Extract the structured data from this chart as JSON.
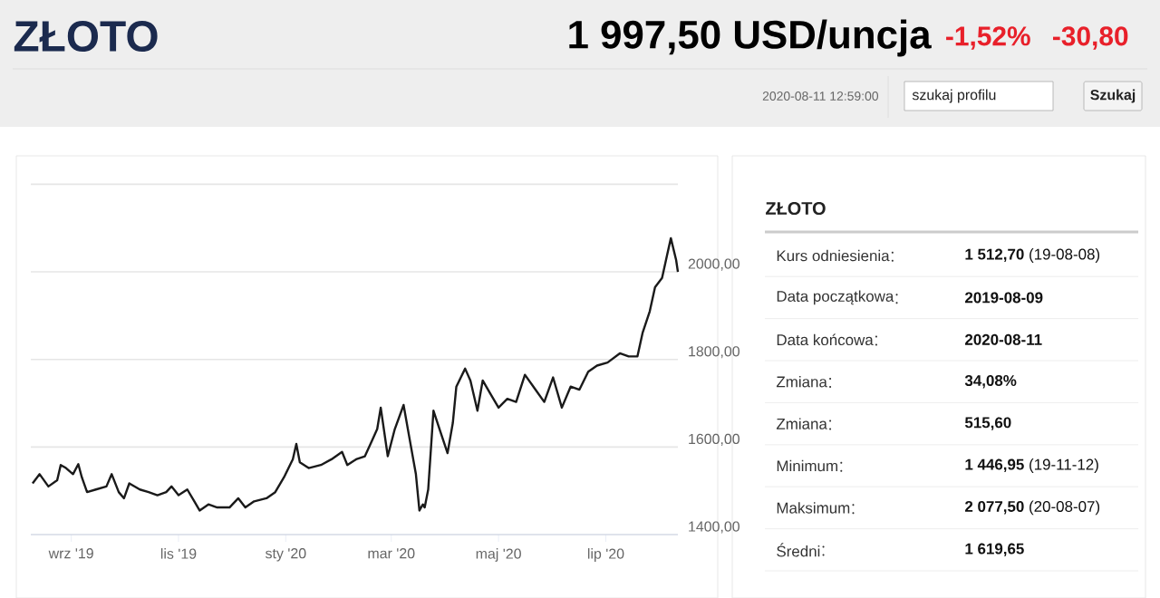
{
  "chart_data": [
    {
      "type": "line",
      "title": "ZŁOTO",
      "annotations": [
        "1 997,50 USD/uncja",
        "-1,52%",
        "-30,80",
        "2020-08-11 12:59:00",
        "szukaj profilu",
        "Szukaj"
      ],
      "color": "#1a1a1a",
      "grid": "y",
      "line_style": "solid",
      "xlim": [
        "2019-08-09",
        "2020-08-11"
      ],
      "ylim": [
        1400,
        2200
      ],
      "xticks": [
        {
          "value": "2019-09-01",
          "label": "wrz '19"
        },
        {
          "value": "2019-11-01",
          "label": "lis '19"
        },
        {
          "value": "2020-01-01",
          "label": "sty '20"
        },
        {
          "value": "2020-03-01",
          "label": "mar '20"
        },
        {
          "value": "2020-05-01",
          "label": "maj '20"
        },
        {
          "value": "2020-07-01",
          "label": "lip '20"
        }
      ],
      "yticks": [
        {
          "value": 1400,
          "label": "1400,00"
        },
        {
          "value": 1600,
          "label": "1600,00"
        },
        {
          "value": 1800,
          "label": "1800,00"
        },
        {
          "value": 2000,
          "label": "2000,00"
        },
        {
          "value": 2200,
          "label": null
        }
      ],
      "x": [
        "2019-08-10",
        "2019-08-14",
        "2019-08-19",
        "2019-08-24",
        "2019-08-26",
        "2019-08-29",
        "2019-09-02",
        "2019-09-05",
        "2019-09-07",
        "2019-09-10",
        "2019-09-15",
        "2019-09-21",
        "2019-09-24",
        "2019-09-28",
        "2019-10-01",
        "2019-10-04",
        "2019-10-10",
        "2019-10-15",
        "2019-10-20",
        "2019-10-25",
        "2019-10-28",
        "2019-11-01",
        "2019-11-06",
        "2019-11-10",
        "2019-11-13",
        "2019-11-18",
        "2019-11-23",
        "2019-11-30",
        "2019-12-05",
        "2019-12-09",
        "2019-12-14",
        "2019-12-21",
        "2019-12-26",
        "2019-12-31",
        "2020-01-05",
        "2020-01-07",
        "2020-01-09",
        "2020-01-14",
        "2020-01-21",
        "2020-01-27",
        "2020-02-02",
        "2020-02-05",
        "2020-02-10",
        "2020-02-15",
        "2020-02-19",
        "2020-02-22",
        "2020-02-24",
        "2020-02-28",
        "2020-03-03",
        "2020-03-08",
        "2020-03-11",
        "2020-03-15",
        "2020-03-17",
        "2020-03-19",
        "2020-03-20",
        "2020-03-22",
        "2020-03-25",
        "2020-03-29",
        "2020-04-02",
        "2020-04-05",
        "2020-04-07",
        "2020-04-12",
        "2020-04-15",
        "2020-04-19",
        "2020-04-22",
        "2020-04-26",
        "2020-05-01",
        "2020-05-06",
        "2020-05-11",
        "2020-05-16",
        "2020-05-22",
        "2020-05-27",
        "2020-06-01",
        "2020-06-06",
        "2020-06-11",
        "2020-06-16",
        "2020-06-21",
        "2020-06-26",
        "2020-07-02",
        "2020-07-09",
        "2020-07-14",
        "2020-07-19",
        "2020-07-22",
        "2020-07-26",
        "2020-07-29",
        "2020-08-02",
        "2020-08-05",
        "2020-08-07",
        "2020-08-10",
        "2020-08-11"
      ],
      "values": [
        1517,
        1538,
        1510,
        1524,
        1559,
        1552,
        1538,
        1561,
        1531,
        1497,
        1503,
        1510,
        1538,
        1497,
        1483,
        1517,
        1503,
        1497,
        1490,
        1497,
        1510,
        1490,
        1503,
        1476,
        1455,
        1469,
        1462,
        1462,
        1483,
        1462,
        1476,
        1483,
        1497,
        1531,
        1572,
        1607,
        1565,
        1552,
        1559,
        1572,
        1589,
        1559,
        1572,
        1579,
        1614,
        1641,
        1690,
        1579,
        1641,
        1696,
        1628,
        1538,
        1455,
        1469,
        1462,
        1503,
        1683,
        1634,
        1586,
        1655,
        1738,
        1779,
        1752,
        1683,
        1752,
        1724,
        1690,
        1710,
        1703,
        1765,
        1731,
        1703,
        1759,
        1690,
        1738,
        1731,
        1772,
        1786,
        1793,
        1814,
        1807,
        1807,
        1862,
        1910,
        1965,
        1986,
        2041,
        2077,
        2027,
        2000
      ]
    },
    {
      "type": "other",
      "title": "ZŁOTO",
      "categories": [
        "Kurs odniesienia",
        "Data początkowa",
        "Data końcowa",
        "Zmiana",
        "Zmiana",
        "Minimum",
        "Maksimum",
        "Średni"
      ],
      "value_labels": [
        "**1 512,70** (19-08-08)",
        "**2019-08-09**",
        "**2020-08-11**",
        "**34,08%**",
        "**515,60**",
        "**1 446,95** (19-11-12)",
        "**2 077,50** (20-08-07)",
        "**1 619,65**"
      ]
    }
  ]
}
